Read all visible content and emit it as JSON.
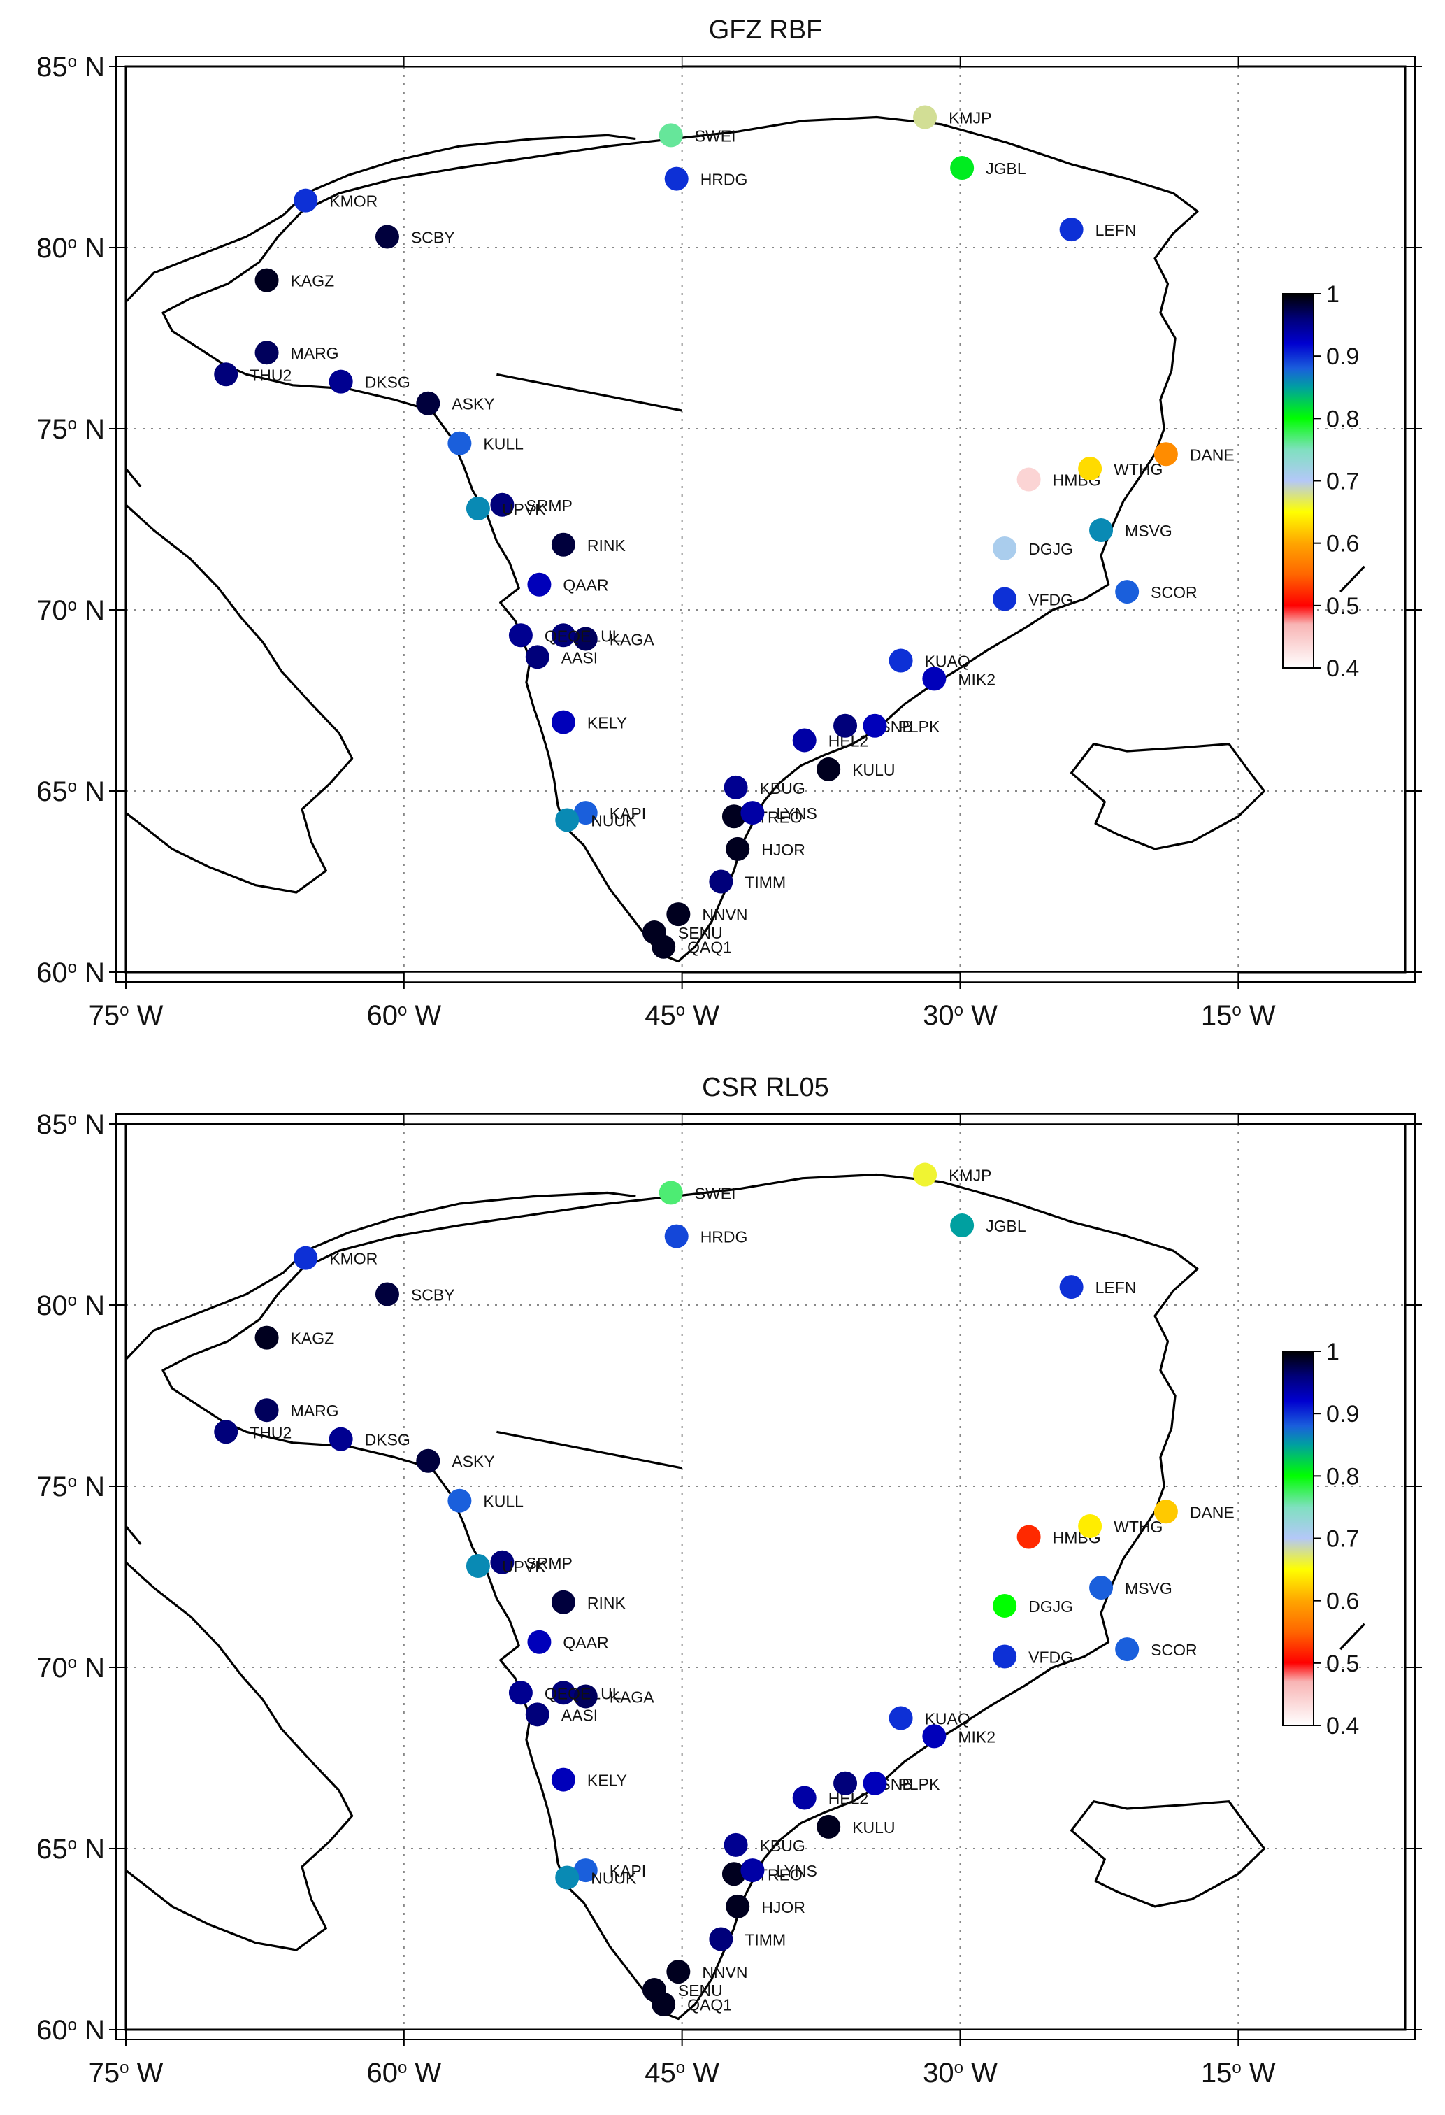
{
  "panels": [
    {
      "title": "GFZ RBF",
      "stations": [
        {
          "name": "KMJP",
          "lon": -31.9,
          "lat": 83.6,
          "value": 0.68
        },
        {
          "name": "SWEI",
          "lon": -45.6,
          "lat": 83.1,
          "value": 0.76
        },
        {
          "name": "HRDG",
          "lon": -45.3,
          "lat": 81.9,
          "value": 0.9
        },
        {
          "name": "JGBL",
          "lon": -29.9,
          "lat": 82.2,
          "value": 0.81
        },
        {
          "name": "KMOR",
          "lon": -65.3,
          "lat": 81.3,
          "value": 0.9
        },
        {
          "name": "SCBY",
          "lon": -60.9,
          "lat": 80.3,
          "value": 0.98
        },
        {
          "name": "LEFN",
          "lon": -24.0,
          "lat": 80.5,
          "value": 0.9
        },
        {
          "name": "KAGZ",
          "lon": -67.4,
          "lat": 79.1,
          "value": 0.99
        },
        {
          "name": "MARG",
          "lon": -67.4,
          "lat": 77.1,
          "value": 0.97
        },
        {
          "name": "THU2",
          "lon": -69.6,
          "lat": 76.5,
          "value": 0.96
        },
        {
          "name": "DKSG",
          "lon": -63.4,
          "lat": 76.3,
          "value": 0.95
        },
        {
          "name": "ASKY",
          "lon": -58.7,
          "lat": 75.7,
          "value": 0.98
        },
        {
          "name": "KULL",
          "lon": -57.0,
          "lat": 74.6,
          "value": 0.88
        },
        {
          "name": "SRMP",
          "lon": -54.7,
          "lat": 72.9,
          "value": 0.96
        },
        {
          "name": "UPVK",
          "lon": -56.0,
          "lat": 72.8,
          "value": 0.86
        },
        {
          "name": "RINK",
          "lon": -51.4,
          "lat": 71.8,
          "value": 0.98
        },
        {
          "name": "QAAR",
          "lon": -52.7,
          "lat": 70.7,
          "value": 0.93
        },
        {
          "name": "ILUL",
          "lon": -51.4,
          "lat": 69.3,
          "value": 0.96
        },
        {
          "name": "KAGA",
          "lon": -50.2,
          "lat": 69.2,
          "value": 0.97
        },
        {
          "name": "QEQE",
          "lon": -53.7,
          "lat": 69.3,
          "value": 0.95
        },
        {
          "name": "AASI",
          "lon": -52.8,
          "lat": 68.7,
          "value": 0.96
        },
        {
          "name": "KELY",
          "lon": -51.4,
          "lat": 66.9,
          "value": 0.93
        },
        {
          "name": "KAPI",
          "lon": -50.2,
          "lat": 64.4,
          "value": 0.88
        },
        {
          "name": "NUUK",
          "lon": -51.2,
          "lat": 64.2,
          "value": 0.86
        },
        {
          "name": "SENU",
          "lon": -46.5,
          "lat": 61.1,
          "value": 0.99
        },
        {
          "name": "QAQ1",
          "lon": -46.0,
          "lat": 60.7,
          "value": 0.99
        },
        {
          "name": "NNVN",
          "lon": -45.2,
          "lat": 61.6,
          "value": 0.99
        },
        {
          "name": "TIMM",
          "lon": -42.9,
          "lat": 62.5,
          "value": 0.96
        },
        {
          "name": "HJOR",
          "lon": -42.0,
          "lat": 63.4,
          "value": 0.99
        },
        {
          "name": "TREO",
          "lon": -42.2,
          "lat": 64.3,
          "value": 0.99
        },
        {
          "name": "LYNS",
          "lon": -41.2,
          "lat": 64.4,
          "value": 0.94
        },
        {
          "name": "KBUG",
          "lon": -42.1,
          "lat": 65.1,
          "value": 0.95
        },
        {
          "name": "KULU",
          "lon": -37.1,
          "lat": 65.6,
          "value": 0.99
        },
        {
          "name": "HEL2",
          "lon": -38.4,
          "lat": 66.4,
          "value": 0.94
        },
        {
          "name": "KSNB",
          "lon": -36.2,
          "lat": 66.8,
          "value": 0.96
        },
        {
          "name": "PLPK",
          "lon": -34.6,
          "lat": 66.8,
          "value": 0.93
        },
        {
          "name": "KUAQ",
          "lon": -33.2,
          "lat": 68.6,
          "value": 0.9
        },
        {
          "name": "MIK2",
          "lon": -31.4,
          "lat": 68.1,
          "value": 0.93
        },
        {
          "name": "HMBG",
          "lon": -26.3,
          "lat": 73.6,
          "value": 0.44
        },
        {
          "name": "WTHG",
          "lon": -23.0,
          "lat": 73.9,
          "value": 0.63
        },
        {
          "name": "DANE",
          "lon": -18.9,
          "lat": 74.3,
          "value": 0.58
        },
        {
          "name": "MSVG",
          "lon": -22.4,
          "lat": 72.2,
          "value": 0.86
        },
        {
          "name": "DGJG",
          "lon": -27.6,
          "lat": 71.7,
          "value": 0.71
        },
        {
          "name": "SCOR",
          "lon": -21.0,
          "lat": 70.5,
          "value": 0.88
        },
        {
          "name": "VFDG",
          "lon": -27.6,
          "lat": 70.3,
          "value": 0.9
        }
      ]
    },
    {
      "title": "CSR RL05",
      "stations": [
        {
          "name": "KMJP",
          "lon": -31.9,
          "lat": 83.6,
          "value": 0.66
        },
        {
          "name": "SWEI",
          "lon": -45.6,
          "lat": 83.1,
          "value": 0.77
        },
        {
          "name": "HRDG",
          "lon": -45.3,
          "lat": 81.9,
          "value": 0.89
        },
        {
          "name": "JGBL",
          "lon": -29.9,
          "lat": 82.2,
          "value": 0.85
        },
        {
          "name": "KMOR",
          "lon": -65.3,
          "lat": 81.3,
          "value": 0.9
        },
        {
          "name": "SCBY",
          "lon": -60.9,
          "lat": 80.3,
          "value": 0.98
        },
        {
          "name": "LEFN",
          "lon": -24.0,
          "lat": 80.5,
          "value": 0.9
        },
        {
          "name": "KAGZ",
          "lon": -67.4,
          "lat": 79.1,
          "value": 0.99
        },
        {
          "name": "MARG",
          "lon": -67.4,
          "lat": 77.1,
          "value": 0.97
        },
        {
          "name": "THU2",
          "lon": -69.6,
          "lat": 76.5,
          "value": 0.96
        },
        {
          "name": "DKSG",
          "lon": -63.4,
          "lat": 76.3,
          "value": 0.95
        },
        {
          "name": "ASKY",
          "lon": -58.7,
          "lat": 75.7,
          "value": 0.98
        },
        {
          "name": "KULL",
          "lon": -57.0,
          "lat": 74.6,
          "value": 0.88
        },
        {
          "name": "SRMP",
          "lon": -54.7,
          "lat": 72.9,
          "value": 0.96
        },
        {
          "name": "UPVK",
          "lon": -56.0,
          "lat": 72.8,
          "value": 0.86
        },
        {
          "name": "RINK",
          "lon": -51.4,
          "lat": 71.8,
          "value": 0.98
        },
        {
          "name": "QAAR",
          "lon": -52.7,
          "lat": 70.7,
          "value": 0.93
        },
        {
          "name": "ILUL",
          "lon": -51.4,
          "lat": 69.3,
          "value": 0.96
        },
        {
          "name": "KAGA",
          "lon": -50.2,
          "lat": 69.2,
          "value": 0.97
        },
        {
          "name": "QEQE",
          "lon": -53.7,
          "lat": 69.3,
          "value": 0.95
        },
        {
          "name": "AASI",
          "lon": -52.8,
          "lat": 68.7,
          "value": 0.96
        },
        {
          "name": "KELY",
          "lon": -51.4,
          "lat": 66.9,
          "value": 0.93
        },
        {
          "name": "KAPI",
          "lon": -50.2,
          "lat": 64.4,
          "value": 0.88
        },
        {
          "name": "NUUK",
          "lon": -51.2,
          "lat": 64.2,
          "value": 0.86
        },
        {
          "name": "SENU",
          "lon": -46.5,
          "lat": 61.1,
          "value": 0.99
        },
        {
          "name": "QAQ1",
          "lon": -46.0,
          "lat": 60.7,
          "value": 0.99
        },
        {
          "name": "NNVN",
          "lon": -45.2,
          "lat": 61.6,
          "value": 0.99
        },
        {
          "name": "TIMM",
          "lon": -42.9,
          "lat": 62.5,
          "value": 0.96
        },
        {
          "name": "HJOR",
          "lon": -42.0,
          "lat": 63.4,
          "value": 0.99
        },
        {
          "name": "TREO",
          "lon": -42.2,
          "lat": 64.3,
          "value": 0.99
        },
        {
          "name": "LYNS",
          "lon": -41.2,
          "lat": 64.4,
          "value": 0.94
        },
        {
          "name": "KBUG",
          "lon": -42.1,
          "lat": 65.1,
          "value": 0.95
        },
        {
          "name": "KULU",
          "lon": -37.1,
          "lat": 65.6,
          "value": 0.99
        },
        {
          "name": "HEL2",
          "lon": -38.4,
          "lat": 66.4,
          "value": 0.94
        },
        {
          "name": "KSNB",
          "lon": -36.2,
          "lat": 66.8,
          "value": 0.96
        },
        {
          "name": "PLPK",
          "lon": -34.6,
          "lat": 66.8,
          "value": 0.93
        },
        {
          "name": "KUAQ",
          "lon": -33.2,
          "lat": 68.6,
          "value": 0.9
        },
        {
          "name": "MIK2",
          "lon": -31.4,
          "lat": 68.1,
          "value": 0.93
        },
        {
          "name": "HMBG",
          "lon": -26.3,
          "lat": 73.6,
          "value": 0.52
        },
        {
          "name": "WTHG",
          "lon": -23.0,
          "lat": 73.9,
          "value": 0.64
        },
        {
          "name": "DANE",
          "lon": -18.9,
          "lat": 74.3,
          "value": 0.62
        },
        {
          "name": "MSVG",
          "lon": -22.4,
          "lat": 72.2,
          "value": 0.88
        },
        {
          "name": "DGJG",
          "lon": -27.6,
          "lat": 71.7,
          "value": 0.8
        },
        {
          "name": "SCOR",
          "lon": -21.0,
          "lat": 70.5,
          "value": 0.88
        },
        {
          "name": "VFDG",
          "lon": -27.6,
          "lat": 70.3,
          "value": 0.9
        }
      ]
    }
  ],
  "axes": {
    "lon_ticks": [
      {
        "value": -75,
        "deg": "75",
        "hemi": " W"
      },
      {
        "value": -60,
        "deg": "60",
        "hemi": " W"
      },
      {
        "value": -45,
        "deg": "45",
        "hemi": " W"
      },
      {
        "value": -30,
        "deg": "30",
        "hemi": " W"
      },
      {
        "value": -15,
        "deg": "15",
        "hemi": " W"
      }
    ],
    "lat_ticks": [
      {
        "value": 85,
        "deg": "85",
        "hemi": " N"
      },
      {
        "value": 80,
        "deg": "80",
        "hemi": " N"
      },
      {
        "value": 75,
        "deg": "75",
        "hemi": " N"
      },
      {
        "value": 70,
        "deg": "70",
        "hemi": " N"
      },
      {
        "value": 65,
        "deg": "65",
        "hemi": " N"
      },
      {
        "value": 60,
        "deg": "60",
        "hemi": " N"
      }
    ],
    "degree_symbol": "o",
    "lon_range": [
      -75,
      -6
    ],
    "lat_range": [
      60,
      85
    ]
  },
  "colorbar": {
    "ticks": [
      "1",
      "0.9",
      "0.8",
      "0.7",
      "0.6",
      "0.5",
      "0.4"
    ],
    "range": [
      0.4,
      1.0
    ],
    "stops": [
      {
        "v": 0.4,
        "color": "#ffffff"
      },
      {
        "v": 0.47,
        "color": "#f8b4b4"
      },
      {
        "v": 0.5,
        "color": "#ff0000"
      },
      {
        "v": 0.55,
        "color": "#ff6600"
      },
      {
        "v": 0.6,
        "color": "#ffa500"
      },
      {
        "v": 0.65,
        "color": "#ffff00"
      },
      {
        "v": 0.7,
        "color": "#b4c8f8"
      },
      {
        "v": 0.75,
        "color": "#80e0c0"
      },
      {
        "v": 0.8,
        "color": "#00ff00"
      },
      {
        "v": 0.85,
        "color": "#00a0a0"
      },
      {
        "v": 0.88,
        "color": "#1a5fdc"
      },
      {
        "v": 0.92,
        "color": "#0000d0"
      },
      {
        "v": 0.96,
        "color": "#00007a"
      },
      {
        "v": 1.0,
        "color": "#000000"
      }
    ]
  },
  "colors": {
    "coast": "#000000",
    "grid": "#888888",
    "frame": "#000000"
  }
}
